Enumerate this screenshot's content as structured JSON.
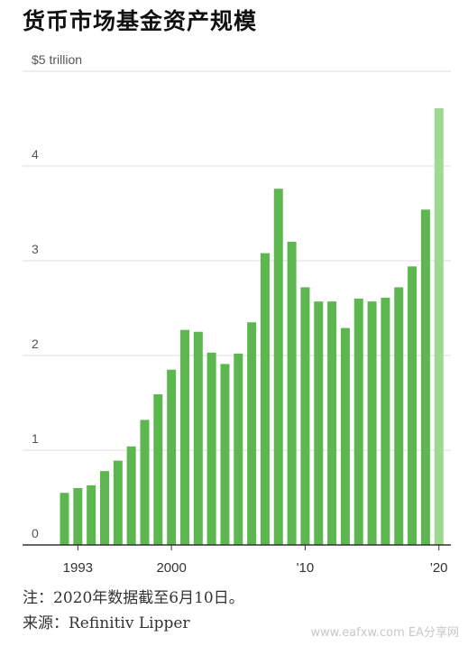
{
  "title": "货币市场基金资产规模",
  "notes": {
    "note": "注：2020年数据截至6月10日。",
    "source": "来源：Refinitiv Lipper"
  },
  "watermark": "www.eafxw.com  EA分享网",
  "colors": {
    "bar": "#5cb84e",
    "bar_highlight": "#9fd88f",
    "grid": "#dcdcdc",
    "axis": "#333333"
  },
  "chart_data": {
    "type": "bar",
    "title": "货币市场基金资产规模",
    "xlabel": "",
    "ylabel": "",
    "ylim": [
      0,
      5
    ],
    "grid": true,
    "x": [
      1992,
      1993,
      1994,
      1995,
      1996,
      1997,
      1998,
      1999,
      2000,
      2001,
      2002,
      2003,
      2004,
      2005,
      2006,
      2007,
      2008,
      2009,
      2010,
      2011,
      2012,
      2013,
      2014,
      2015,
      2016,
      2017,
      2018,
      2019,
      2020
    ],
    "values": [
      0.55,
      0.6,
      0.63,
      0.78,
      0.89,
      1.04,
      1.32,
      1.59,
      1.85,
      2.27,
      2.25,
      2.03,
      1.91,
      2.02,
      2.35,
      3.08,
      3.76,
      3.2,
      2.72,
      2.57,
      2.57,
      2.29,
      2.6,
      2.57,
      2.61,
      2.72,
      2.94,
      3.54,
      4.61
    ],
    "y_tick_labels": [
      "0",
      "1",
      "2",
      "3",
      "4",
      "$5 trillion"
    ],
    "x_tick_labels": [
      "1993",
      "2000",
      "'10",
      "'20"
    ]
  }
}
